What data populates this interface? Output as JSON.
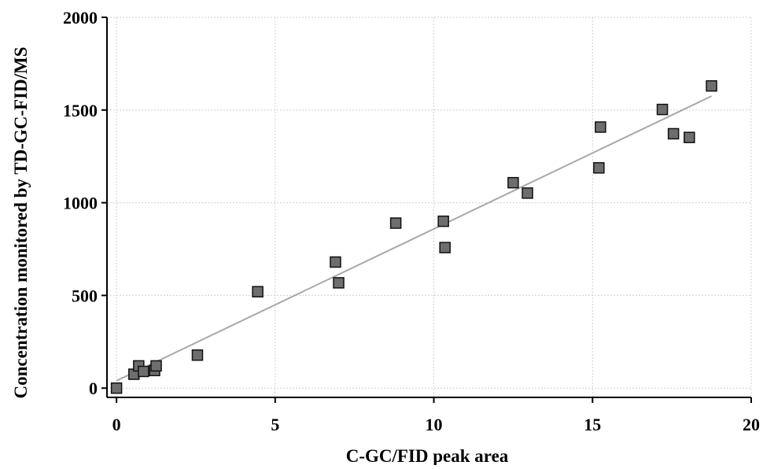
{
  "chart_data": {
    "type": "scatter",
    "title": "",
    "xlabel": "C-GC/FID peak area",
    "ylabel": "Concentration monitored by TD-GC-FID/MS",
    "xlim": [
      -0.3,
      20
    ],
    "ylim": [
      -50,
      2000
    ],
    "x_ticks": [
      0,
      5,
      10,
      15,
      20
    ],
    "y_ticks": [
      0,
      500,
      1000,
      1500,
      2000
    ],
    "grid": true,
    "legend": "none",
    "colors": {
      "marker_fill": "#6e6e6e",
      "marker_edge": "#111111",
      "fit_line": "#a8a8a8",
      "grid": "#d0d0d0"
    },
    "series": [
      {
        "marker": "square",
        "points": [
          {
            "x": 0.0,
            "y": 0
          },
          {
            "x": 0.55,
            "y": 75
          },
          {
            "x": 0.7,
            "y": 120
          },
          {
            "x": 0.85,
            "y": 90
          },
          {
            "x": 1.2,
            "y": 95
          },
          {
            "x": 1.25,
            "y": 120
          },
          {
            "x": 2.55,
            "y": 178
          },
          {
            "x": 4.45,
            "y": 520
          },
          {
            "x": 6.9,
            "y": 680
          },
          {
            "x": 7.0,
            "y": 568
          },
          {
            "x": 8.8,
            "y": 890
          },
          {
            "x": 10.3,
            "y": 900
          },
          {
            "x": 10.35,
            "y": 758
          },
          {
            "x": 12.5,
            "y": 1108
          },
          {
            "x": 12.95,
            "y": 1052
          },
          {
            "x": 15.2,
            "y": 1188
          },
          {
            "x": 15.25,
            "y": 1408
          },
          {
            "x": 17.2,
            "y": 1503
          },
          {
            "x": 17.55,
            "y": 1372
          },
          {
            "x": 18.05,
            "y": 1352
          },
          {
            "x": 18.75,
            "y": 1630
          }
        ]
      }
    ],
    "fit_line": {
      "x": [
        0,
        18.75
      ],
      "y": [
        40,
        1575
      ]
    }
  }
}
